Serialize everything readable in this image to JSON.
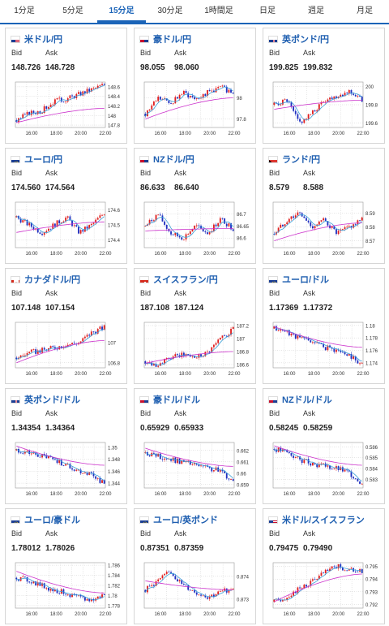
{
  "tabs": [
    {
      "label": "1分足",
      "active": false
    },
    {
      "label": "5分足",
      "active": false
    },
    {
      "label": "15分足",
      "active": true
    },
    {
      "label": "30分足",
      "active": false
    },
    {
      "label": "1時間足",
      "active": false
    },
    {
      "label": "日足",
      "active": false
    },
    {
      "label": "週足",
      "active": false
    },
    {
      "label": "月足",
      "active": false
    }
  ],
  "labels": {
    "bid": "Bid",
    "ask": "Ask"
  },
  "colors": {
    "up": "#e02020",
    "down": "#2030c0",
    "ma_short": "#3aa0d8",
    "ma_long": "#cc33cc",
    "grid": "#cccccc"
  },
  "x_ticks": [
    "16:00",
    "18:00",
    "20:00",
    "22:00"
  ],
  "cards": [
    {
      "pair": "米ドル/円",
      "flag": "us",
      "bid": "148.726",
      "ask": "148.728",
      "chart_data": {
        "type": "candlestick",
        "y_ticks": [
          "148.6",
          "148.4",
          "148.2",
          "148",
          "147.8"
        ],
        "ylim": [
          147.75,
          148.7
        ],
        "trend": [
          147.9,
          148.05,
          148.1,
          148.3,
          148.35,
          148.45,
          148.55,
          148.65
        ],
        "ma_long": [
          147.85,
          148.15
        ]
      }
    },
    {
      "pair": "豪ドル/円",
      "flag": "au",
      "bid": "98.055",
      "ask": "98.060",
      "chart_data": {
        "type": "candlestick",
        "y_ticks": [
          "98",
          "97.8"
        ],
        "ylim": [
          97.72,
          98.15
        ],
        "trend": [
          97.85,
          98.0,
          97.95,
          98.05,
          98.0,
          98.05,
          98.1,
          98.05
        ],
        "ma_long": [
          97.8,
          98.0
        ]
      }
    },
    {
      "pair": "英ポンド/円",
      "flag": "uk",
      "bid": "199.825",
      "ask": "199.832",
      "chart_data": {
        "type": "candlestick",
        "y_ticks": [
          "200",
          "199.8",
          "199.6"
        ],
        "ylim": [
          199.55,
          200.05
        ],
        "trend": [
          199.8,
          199.85,
          199.6,
          199.7,
          199.85,
          199.9,
          199.95,
          199.85
        ],
        "ma_long": [
          199.75,
          199.85
        ]
      }
    },
    {
      "pair": "ユーロ/円",
      "flag": "eu",
      "bid": "174.560",
      "ask": "174.564",
      "chart_data": {
        "type": "candlestick",
        "y_ticks": [
          "174.6",
          "174.5",
          "174.4"
        ],
        "ylim": [
          174.35,
          174.65
        ],
        "trend": [
          174.55,
          174.5,
          174.45,
          174.5,
          174.55,
          174.45,
          174.5,
          174.58
        ],
        "ma_long": [
          174.45,
          174.52
        ]
      }
    },
    {
      "pair": "NZドル/円",
      "flag": "nz",
      "bid": "86.633",
      "ask": "86.640",
      "chart_data": {
        "type": "candlestick",
        "y_ticks": [
          "86.7",
          "86.65",
          "86.6"
        ],
        "ylim": [
          86.56,
          86.75
        ],
        "trend": [
          86.65,
          86.7,
          86.62,
          86.6,
          86.65,
          86.62,
          86.68,
          86.64
        ],
        "ma_long": [
          86.63,
          86.64
        ]
      }
    },
    {
      "pair": "ランド/円",
      "flag": "za",
      "bid": "8.579",
      "ask": "8.588",
      "chart_data": {
        "type": "candlestick",
        "y_ticks": [
          "8.59",
          "8.58",
          "8.57"
        ],
        "ylim": [
          8.565,
          8.598
        ],
        "trend": [
          8.575,
          8.585,
          8.59,
          8.58,
          8.585,
          8.575,
          8.58,
          8.585
        ],
        "ma_long": [
          8.57,
          8.583
        ]
      }
    },
    {
      "pair": "カナダドル/円",
      "flag": "ca",
      "bid": "107.148",
      "ask": "107.154",
      "chart_data": {
        "type": "candlestick",
        "y_ticks": [
          "107",
          "106.8"
        ],
        "ylim": [
          106.75,
          107.2
        ],
        "trend": [
          106.85,
          106.9,
          106.92,
          106.95,
          106.98,
          107.0,
          107.1,
          107.15
        ],
        "ma_long": [
          106.8,
          107.02
        ]
      }
    },
    {
      "pair": "スイスフラン/円",
      "flag": "ch",
      "bid": "187.108",
      "ask": "187.124",
      "chart_data": {
        "type": "candlestick",
        "y_ticks": [
          "187.2",
          "187",
          "186.8",
          "186.6"
        ],
        "ylim": [
          186.55,
          187.25
        ],
        "trend": [
          186.65,
          186.6,
          186.7,
          186.75,
          186.72,
          186.8,
          187.0,
          187.15
        ],
        "ma_long": [
          186.62,
          186.8
        ]
      }
    },
    {
      "pair": "ユーロ/ドル",
      "flag": "eu",
      "bid": "1.17369",
      "ask": "1.17372",
      "chart_data": {
        "type": "candlestick",
        "y_ticks": [
          "1.18",
          "1.178",
          "1.176",
          "1.174"
        ],
        "ylim": [
          1.1732,
          1.1805
        ],
        "trend": [
          1.1795,
          1.179,
          1.178,
          1.1775,
          1.1765,
          1.176,
          1.1752,
          1.1738
        ],
        "ma_long": [
          1.1798,
          1.1765
        ]
      }
    },
    {
      "pair": "英ポンド/ドル",
      "flag": "uk",
      "bid": "1.34354",
      "ask": "1.34364",
      "chart_data": {
        "type": "candlestick",
        "y_ticks": [
          "1.35",
          "1.348",
          "1.346",
          "1.344"
        ],
        "ylim": [
          1.3432,
          1.3508
        ],
        "trend": [
          1.3495,
          1.349,
          1.3485,
          1.348,
          1.347,
          1.346,
          1.3455,
          1.3438
        ],
        "ma_long": [
          1.3502,
          1.347
        ]
      }
    },
    {
      "pair": "豪ドル/ドル",
      "flag": "au",
      "bid": "0.65929",
      "ask": "0.65933",
      "chart_data": {
        "type": "candlestick",
        "y_ticks": [
          "0.662",
          "0.661",
          "0.66",
          "0.659"
        ],
        "ylim": [
          0.6587,
          0.6627
        ],
        "trend": [
          0.6618,
          0.6615,
          0.6612,
          0.661,
          0.6607,
          0.6604,
          0.6602,
          0.6593
        ],
        "ma_long": [
          0.6622,
          0.6606
        ]
      }
    },
    {
      "pair": "NZドル/ドル",
      "flag": "nz",
      "bid": "0.58245",
      "ask": "0.58259",
      "chart_data": {
        "type": "candlestick",
        "y_ticks": [
          "0.586",
          "0.585",
          "0.584",
          "0.583"
        ],
        "ylim": [
          0.5822,
          0.5864
        ],
        "trend": [
          0.5858,
          0.5855,
          0.5848,
          0.5845,
          0.5842,
          0.584,
          0.5836,
          0.5826
        ],
        "ma_long": [
          0.5861,
          0.5843
        ]
      }
    },
    {
      "pair": "ユーロ/豪ドル",
      "flag": "eu",
      "bid": "1.78012",
      "ask": "1.78026",
      "chart_data": {
        "type": "candlestick",
        "y_ticks": [
          "1.786",
          "1.784",
          "1.782",
          "1.78",
          "1.778"
        ],
        "ylim": [
          1.7775,
          1.7865
        ],
        "trend": [
          1.7835,
          1.783,
          1.782,
          1.781,
          1.7805,
          1.7795,
          1.779,
          1.7802
        ],
        "ma_long": [
          1.7848,
          1.7805
        ]
      }
    },
    {
      "pair": "ユーロ/英ポンド",
      "flag": "eu",
      "bid": "0.87351",
      "ask": "0.87359",
      "chart_data": {
        "type": "candlestick",
        "y_ticks": [
          "0.874",
          "0.873"
        ],
        "ylim": [
          0.8726,
          0.8746
        ],
        "trend": [
          0.8734,
          0.8738,
          0.8742,
          0.8736,
          0.8733,
          0.8731,
          0.8733,
          0.8735
        ],
        "ma_long": [
          0.8738,
          0.8734
        ]
      }
    },
    {
      "pair": "米ドル/スイスフラン",
      "flag": "us",
      "bid": "0.79475",
      "ask": "0.79490",
      "chart_data": {
        "type": "candlestick",
        "y_ticks": [
          "0.795",
          "0.794",
          "0.793",
          "0.792"
        ],
        "ylim": [
          0.7917,
          0.7953
        ],
        "trend": [
          0.7922,
          0.7926,
          0.7932,
          0.7938,
          0.7945,
          0.795,
          0.7947,
          0.7946
        ],
        "ma_long": [
          0.7922,
          0.7944
        ]
      }
    }
  ]
}
